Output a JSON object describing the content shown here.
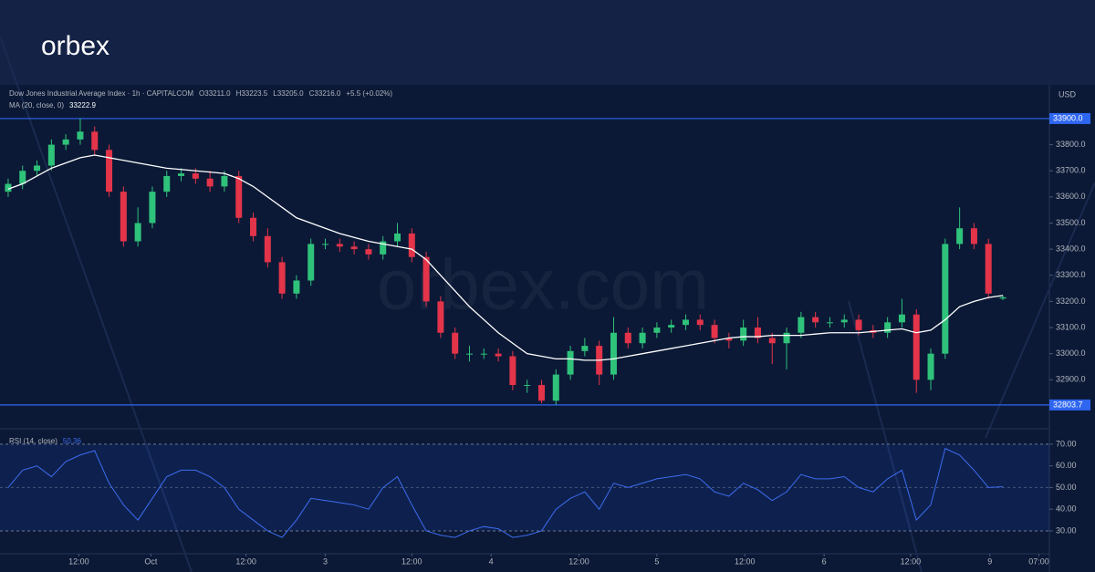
{
  "header": {
    "logo": "orbex",
    "watermark": "orbex.com"
  },
  "chart_data": [
    {
      "type": "candlestick",
      "symbol": "Dow Jones Industrial Average Index · 1h · CAPITALCOM",
      "ohlc_labels": [
        "O33211.0",
        "H33223.5",
        "L33205.0",
        "C33216.0",
        "+5.5 (+0.02%)"
      ],
      "currency": "USD",
      "x": [
        0,
        1,
        2,
        3,
        4,
        5,
        6,
        7,
        8,
        9,
        10,
        11,
        12,
        13,
        14,
        15,
        16,
        17,
        18,
        19,
        20,
        21,
        22,
        23,
        24,
        25,
        26,
        27,
        28,
        29,
        30,
        31,
        32,
        33,
        34,
        35,
        36,
        37,
        38,
        39,
        40,
        41,
        42,
        43,
        44,
        45,
        46,
        47,
        48,
        49,
        50,
        51,
        52,
        53,
        54,
        55,
        56,
        57,
        58,
        59,
        60,
        61,
        62,
        63,
        64,
        65,
        66,
        67,
        68,
        69
      ],
      "open": [
        33620,
        33650,
        33700,
        33720,
        33800,
        33820,
        33850,
        33780,
        33620,
        33430,
        33500,
        33620,
        33680,
        33690,
        33670,
        33640,
        33680,
        33520,
        33450,
        33350,
        33230,
        33280,
        33420,
        33420,
        33410,
        33400,
        33380,
        33430,
        33460,
        33370,
        33200,
        33080,
        33000,
        33000,
        33000,
        32990,
        32880,
        32880,
        32820,
        32920,
        33010,
        33030,
        32920,
        33080,
        33040,
        33080,
        33100,
        33110,
        33130,
        33110,
        33060,
        33050,
        33100,
        33060,
        33040,
        33080,
        33140,
        33120,
        33120,
        33130,
        33090,
        33080,
        33120,
        33150,
        32900,
        33000,
        33420,
        33480,
        33420,
        33211
      ],
      "high": [
        33670,
        33720,
        33740,
        33820,
        33840,
        33900,
        33870,
        33800,
        33640,
        33560,
        33640,
        33700,
        33710,
        33710,
        33700,
        33700,
        33700,
        33540,
        33480,
        33370,
        33300,
        33440,
        33440,
        33440,
        33430,
        33420,
        33450,
        33500,
        33480,
        33390,
        33220,
        33100,
        33030,
        33020,
        33020,
        33010,
        32900,
        32900,
        32940,
        33030,
        33060,
        33050,
        33140,
        33100,
        33100,
        33120,
        33130,
        33150,
        33150,
        33130,
        33080,
        33130,
        33140,
        33080,
        33100,
        33160,
        33160,
        33140,
        33150,
        33150,
        33110,
        33140,
        33210,
        33170,
        33020,
        33440,
        33560,
        33500,
        33440,
        33223.5
      ],
      "low": [
        33600,
        33630,
        33680,
        33700,
        33780,
        33800,
        33760,
        33600,
        33410,
        33410,
        33480,
        33600,
        33660,
        33650,
        33620,
        33620,
        33500,
        33430,
        33330,
        33210,
        33210,
        33260,
        33400,
        33390,
        33380,
        33360,
        33360,
        33410,
        33350,
        33180,
        33060,
        32980,
        32970,
        32980,
        32970,
        32860,
        32850,
        32810,
        32805,
        32900,
        32990,
        32880,
        32900,
        33020,
        33020,
        33060,
        33080,
        33090,
        33090,
        33040,
        33020,
        33030,
        33040,
        32960,
        32940,
        33060,
        33100,
        33100,
        33100,
        33070,
        33060,
        33060,
        33100,
        32850,
        32860,
        32980,
        33400,
        33400,
        33210,
        33205
      ],
      "close": [
        33650,
        33700,
        33720,
        33800,
        33820,
        33850,
        33780,
        33620,
        33430,
        33500,
        33620,
        33680,
        33690,
        33670,
        33640,
        33680,
        33520,
        33450,
        33350,
        33230,
        33280,
        33420,
        33420,
        33410,
        33400,
        33380,
        33430,
        33460,
        33370,
        33200,
        33080,
        33000,
        33000,
        33000,
        32990,
        32880,
        32880,
        32820,
        32920,
        33010,
        33030,
        32920,
        33080,
        33040,
        33080,
        33100,
        33110,
        33130,
        33110,
        33060,
        33050,
        33100,
        33060,
        33040,
        33080,
        33140,
        33120,
        33120,
        33130,
        33090,
        33080,
        33120,
        33150,
        32900,
        33000,
        33420,
        33480,
        33420,
        33230,
        33216
      ],
      "up_color": "#2fc27a",
      "down_color": "#e3344a",
      "overlay": {
        "name": "MA (20, close, 0)",
        "last_label": "33222.9",
        "color": "#ffffff",
        "values": [
          33630,
          33650,
          33680,
          33710,
          33730,
          33750,
          33760,
          33750,
          33740,
          33730,
          33720,
          33710,
          33705,
          33700,
          33695,
          33690,
          33670,
          33640,
          33600,
          33560,
          33520,
          33500,
          33480,
          33460,
          33445,
          33430,
          33420,
          33410,
          33400,
          33360,
          33300,
          33240,
          33180,
          33130,
          33080,
          33040,
          33000,
          32990,
          32980,
          32980,
          32975,
          32975,
          32980,
          32990,
          33000,
          33010,
          33020,
          33030,
          33040,
          33050,
          33060,
          33065,
          33065,
          33070,
          33070,
          33070,
          33075,
          33080,
          33080,
          33080,
          33085,
          33090,
          33095,
          33080,
          33090,
          33130,
          33180,
          33200,
          33215,
          33222.9
        ]
      },
      "hlines": [
        {
          "value": 33900,
          "label": "33900.0",
          "color": "#2f66f0"
        },
        {
          "value": 32803.7,
          "label": "32803.7",
          "color": "#2f66f0"
        }
      ],
      "xlim": [
        -0.25,
        72.1
      ],
      "ylim": [
        32730,
        34029
      ],
      "yticks": [
        {
          "value": 32900,
          "label": "32900.0"
        },
        {
          "value": 33000,
          "label": "33000.0"
        },
        {
          "value": 33100,
          "label": "33100.0"
        },
        {
          "value": 33200,
          "label": "33200.0"
        },
        {
          "value": 33300,
          "label": "33300.0"
        },
        {
          "value": 33400,
          "label": "33400.0"
        },
        {
          "value": 33500,
          "label": "33500.0"
        },
        {
          "value": 33600,
          "label": "33600.0"
        },
        {
          "value": 33700,
          "label": "33700.0"
        },
        {
          "value": 33800,
          "label": "33800.0"
        }
      ]
    },
    {
      "type": "line",
      "x": [
        0,
        1,
        2,
        3,
        4,
        5,
        6,
        7,
        8,
        9,
        10,
        11,
        12,
        13,
        14,
        15,
        16,
        17,
        18,
        19,
        20,
        21,
        22,
        23,
        24,
        25,
        26,
        27,
        28,
        29,
        30,
        31,
        32,
        33,
        34,
        35,
        36,
        37,
        38,
        39,
        40,
        41,
        42,
        43,
        44,
        45,
        46,
        47,
        48,
        49,
        50,
        51,
        52,
        53,
        54,
        55,
        56,
        57,
        58,
        59,
        60,
        61,
        62,
        63,
        64,
        65,
        66,
        67,
        68,
        69
      ],
      "series": [
        {
          "name": "RSI (14, close)",
          "last_label": "50.36",
          "color": "#3d6cf0",
          "values": [
            50,
            58,
            60,
            55,
            62,
            65,
            67,
            52,
            42,
            35,
            45,
            55,
            58,
            58,
            55,
            50,
            40,
            35,
            30,
            27,
            35,
            45,
            44,
            43,
            42,
            40,
            50,
            55,
            42,
            30,
            28,
            27,
            30,
            32,
            31,
            27,
            28,
            30,
            40,
            45,
            48,
            40,
            52,
            50,
            52,
            54,
            55,
            56,
            54,
            48,
            46,
            52,
            49,
            44,
            48,
            56,
            54,
            54,
            55,
            50,
            48,
            54,
            58,
            35,
            42,
            68,
            65,
            58,
            50,
            50.36
          ]
        }
      ],
      "band": [
        30,
        70
      ],
      "midline": 50,
      "xlim": [
        -0.25,
        72.1
      ],
      "ylim": [
        20.3,
        75
      ],
      "yticks": [
        {
          "value": 30,
          "label": "30.00"
        },
        {
          "value": 40,
          "label": "40.00"
        },
        {
          "value": 50,
          "label": "50.00"
        },
        {
          "value": 60,
          "label": "60.00"
        },
        {
          "value": 70,
          "label": "70.00"
        }
      ],
      "xticks": [
        {
          "value": 4.9,
          "label": "12:00"
        },
        {
          "value": 9.9,
          "label": "Oct"
        },
        {
          "value": 16.5,
          "label": "12:00"
        },
        {
          "value": 22,
          "label": "3"
        },
        {
          "value": 28,
          "label": "12:00"
        },
        {
          "value": 33.5,
          "label": "4"
        },
        {
          "value": 39.6,
          "label": "12:00"
        },
        {
          "value": 45,
          "label": "5"
        },
        {
          "value": 51.1,
          "label": "12:00"
        },
        {
          "value": 56.6,
          "label": "6"
        },
        {
          "value": 62.6,
          "label": "12:00"
        },
        {
          "value": 68.1,
          "label": "9"
        },
        {
          "value": 71.5,
          "label": "07:00"
        }
      ]
    }
  ]
}
